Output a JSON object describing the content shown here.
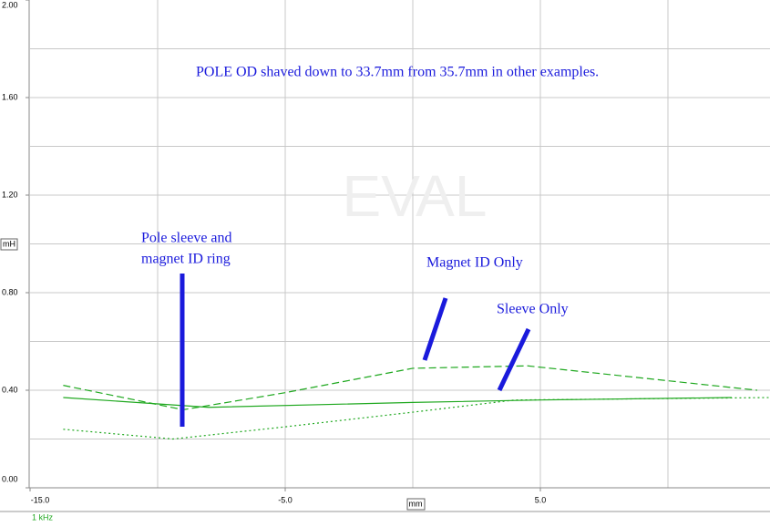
{
  "chart_data": {
    "type": "line",
    "watermark": "EVAL",
    "footer": "1 kHz",
    "x_label": "mm",
    "y_label": "mH",
    "xlim": [
      -15,
      14
    ],
    "ylim": [
      0,
      2
    ],
    "xticks": [
      {
        "value": -15,
        "label": "-15.0"
      },
      {
        "value": -5,
        "label": "-5.0"
      },
      {
        "value": 5,
        "label": "5.0"
      }
    ],
    "xgrid": [
      -10,
      -5,
      0,
      5,
      10
    ],
    "yticks": [
      {
        "value": 0,
        "label": "0.00"
      },
      {
        "value": 0.4,
        "label": "0.40"
      },
      {
        "value": 0.8,
        "label": "0.80"
      },
      {
        "value": 1.2,
        "label": "1.20"
      },
      {
        "value": 1.6,
        "label": "1.60"
      },
      {
        "value": 2,
        "label": "2.00"
      }
    ],
    "ygrid": [
      0.2,
      0.4,
      0.6,
      0.8,
      1.0,
      1.2,
      1.4,
      1.6,
      1.8
    ],
    "grid": true,
    "series": [
      {
        "color": "#1fa81f",
        "dash": "8 4",
        "x": [
          -13.7,
          -9,
          -5,
          0,
          4.5,
          9,
          13.5
        ],
        "values": [
          0.42,
          0.32,
          0.39,
          0.49,
          0.5,
          0.45,
          0.4
        ]
      },
      {
        "color": "#1fa81f",
        "dash": "none",
        "x": [
          -13.7,
          -8,
          0,
          5,
          12.5
        ],
        "values": [
          0.37,
          0.33,
          0.35,
          0.36,
          0.37
        ]
      },
      {
        "color": "#1fa81f",
        "dash": "2 3",
        "x": [
          -13.7,
          -9.4,
          -5,
          0,
          4,
          14
        ],
        "values": [
          0.24,
          0.2,
          0.25,
          0.31,
          0.36,
          0.37
        ]
      }
    ],
    "annotations": {
      "note": "POLE OD shaved down to 33.7mm from 35.7mm in other examples.",
      "pole": [
        "Pole sleeve and",
        "magnet ID ring"
      ],
      "magnet": "Magnet ID Only",
      "sleeve": "Sleeve Only"
    }
  }
}
